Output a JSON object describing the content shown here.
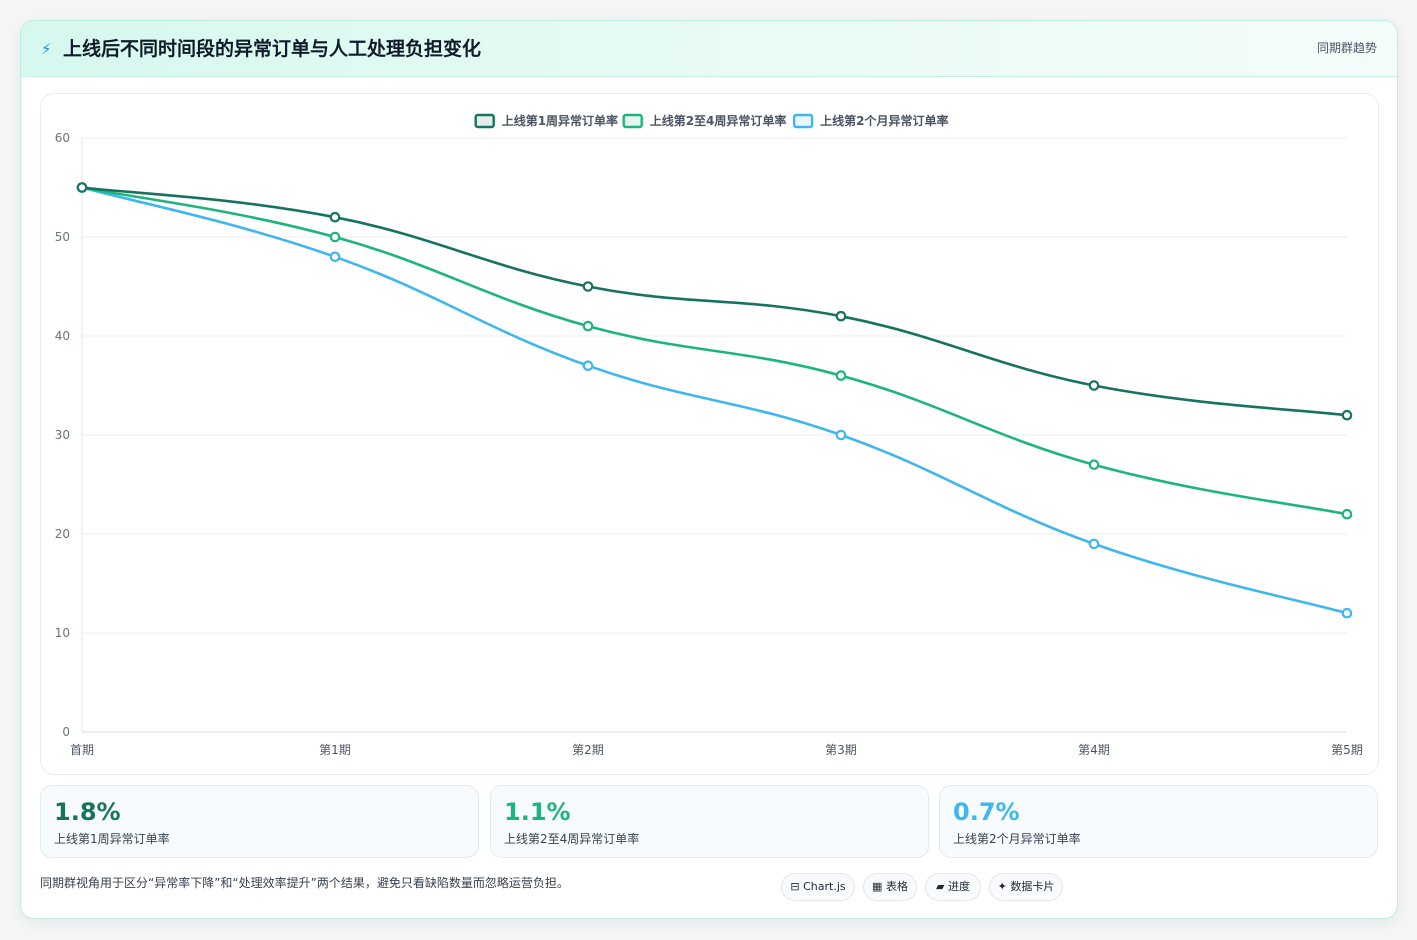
{
  "header": {
    "icon": "lightning-icon",
    "title": "上线后不同时间段的异常订单与人工处理负担变化",
    "tag": "同期群趋势"
  },
  "chart_data": {
    "type": "line",
    "categories": [
      "首期",
      "第1期",
      "第2期",
      "第3期",
      "第4期",
      "第5期"
    ],
    "ylim": [
      0,
      60
    ],
    "yticks": [
      0,
      10,
      20,
      30,
      40,
      50,
      60
    ],
    "grid": true,
    "legend_position": "top-center",
    "series": [
      {
        "name": "上线第1周异常订单率",
        "color": "#17735f",
        "values": [
          55,
          52,
          45,
          42,
          35,
          32
        ]
      },
      {
        "name": "上线第2至4周异常订单率",
        "color": "#1db57c",
        "values": [
          55,
          50,
          41,
          36,
          27,
          22
        ]
      },
      {
        "name": "上线第2个月异常订单率",
        "color": "#3fb6ee",
        "values": [
          55,
          48,
          37,
          30,
          19,
          12
        ]
      }
    ]
  },
  "stats": [
    {
      "value": "1.8%",
      "label": "上线第1周异常订单率",
      "color": "#17735f"
    },
    {
      "value": "1.1%",
      "label": "上线第2至4周异常订单率",
      "color": "#1db57c"
    },
    {
      "value": "0.7%",
      "label": "上线第2个月异常订单率",
      "color": "#3fb6ee"
    }
  ],
  "footer": {
    "note": "同期群视角用于区分“异常率下降”和“处理效率提升”两个结果，避免只看缺陷数量而忽略运营负担。",
    "chips": [
      {
        "icon": "chart-icon",
        "glyph": "⊟",
        "label": "Chart.js"
      },
      {
        "icon": "table-icon",
        "glyph": "▦",
        "label": "表格"
      },
      {
        "icon": "progress-icon",
        "glyph": "▰",
        "label": "进度"
      },
      {
        "icon": "sparkle-icon",
        "glyph": "✦",
        "label": "数据卡片"
      }
    ]
  }
}
